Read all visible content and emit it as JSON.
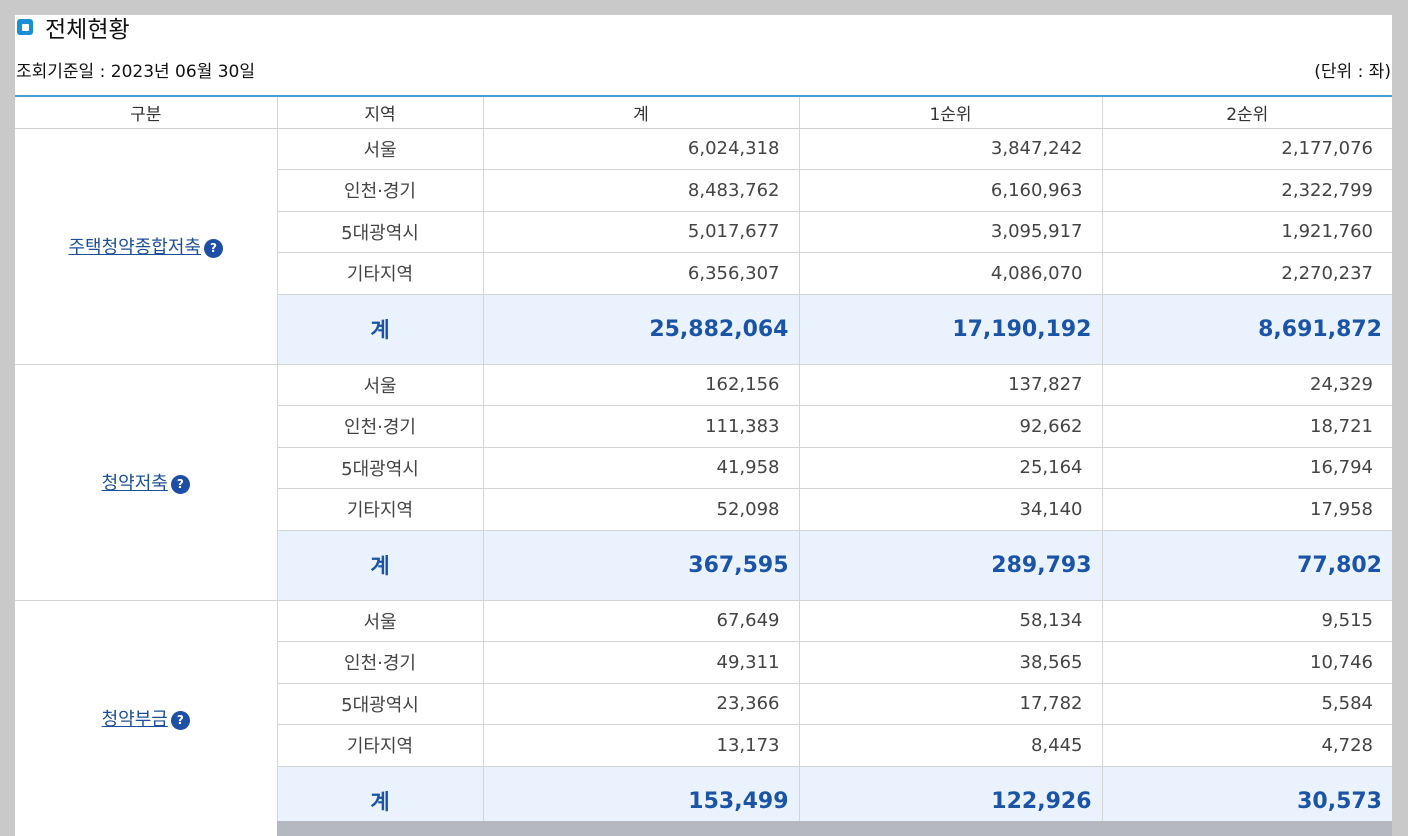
{
  "title": "전체현황",
  "meta": {
    "date_label": "조회기준일 : ",
    "date_value": "2023년 06월 30일",
    "unit": "(단위 : 좌)"
  },
  "headers": {
    "category": "구분",
    "region": "지역",
    "total": "계",
    "rank1": "1순위",
    "rank2": "2순위"
  },
  "help_glyph": "?",
  "groups": [
    {
      "name": "주택청약종합저축",
      "rows": [
        {
          "region": "서울",
          "total": "6,024,318",
          "rank1": "3,847,242",
          "rank2": "2,177,076"
        },
        {
          "region": "인천·경기",
          "total": "8,483,762",
          "rank1": "6,160,963",
          "rank2": "2,322,799"
        },
        {
          "region": "5대광역시",
          "total": "5,017,677",
          "rank1": "3,095,917",
          "rank2": "1,921,760"
        },
        {
          "region": "기타지역",
          "total": "6,356,307",
          "rank1": "4,086,070",
          "rank2": "2,270,237"
        }
      ],
      "sum": {
        "label": "계",
        "total": "25,882,064",
        "rank1": "17,190,192",
        "rank2": "8,691,872"
      }
    },
    {
      "name": "청약저축",
      "rows": [
        {
          "region": "서울",
          "total": "162,156",
          "rank1": "137,827",
          "rank2": "24,329"
        },
        {
          "region": "인천·경기",
          "total": "111,383",
          "rank1": "92,662",
          "rank2": "18,721"
        },
        {
          "region": "5대광역시",
          "total": "41,958",
          "rank1": "25,164",
          "rank2": "16,794"
        },
        {
          "region": "기타지역",
          "total": "52,098",
          "rank1": "34,140",
          "rank2": "17,958"
        }
      ],
      "sum": {
        "label": "계",
        "total": "367,595",
        "rank1": "289,793",
        "rank2": "77,802"
      }
    },
    {
      "name": "청약부금",
      "rows": [
        {
          "region": "서울",
          "total": "67,649",
          "rank1": "58,134",
          "rank2": "9,515"
        },
        {
          "region": "인천·경기",
          "total": "49,311",
          "rank1": "38,565",
          "rank2": "10,746"
        },
        {
          "region": "5대광역시",
          "total": "23,366",
          "rank1": "17,782",
          "rank2": "5,584"
        },
        {
          "region": "기타지역",
          "total": "13,173",
          "rank1": "8,445",
          "rank2": "4,728"
        }
      ],
      "sum": {
        "label": "계",
        "total": "153,499",
        "rank1": "122,926",
        "rank2": "30,573"
      }
    }
  ]
}
